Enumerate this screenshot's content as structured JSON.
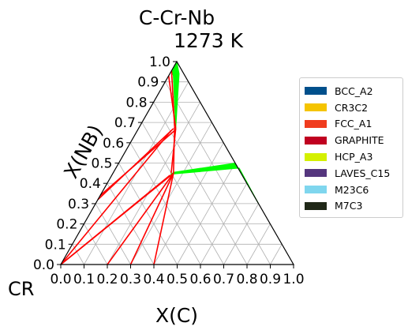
{
  "chart_data": {
    "type": "ternary",
    "title": "C-Cr-Nb",
    "subtitle": "1273  K",
    "xlabel": "X(C)",
    "ylabel": "X(NB)",
    "corner_label": "CR",
    "xlim": [
      0,
      1
    ],
    "ylim": [
      0,
      1
    ],
    "x_ticks": [
      "0.0",
      "0.1",
      "0.2",
      "0.3",
      "0.4",
      "0.5",
      "0.6",
      "0.7",
      "0.8",
      "0.9",
      "1.0"
    ],
    "y_ticks": [
      "0.0",
      "0.1",
      "0.2",
      "0.3",
      "0.4",
      "0.5",
      "0.6",
      "0.7",
      "0.8",
      "0.9",
      "1.0"
    ],
    "grid": true,
    "legend_position": "right",
    "legend": [
      {
        "name": "BCC_A2",
        "color": "#00508c"
      },
      {
        "name": "CR3C2",
        "color": "#f5c400"
      },
      {
        "name": "FCC_A1",
        "color": "#f03c1e"
      },
      {
        "name": "GRAPHITE",
        "color": "#c00020"
      },
      {
        "name": "HCP_A3",
        "color": "#d4f000"
      },
      {
        "name": "LAVES_C15",
        "color": "#55367e"
      },
      {
        "name": "M23C6",
        "color": "#7fd6ee"
      },
      {
        "name": "M7C3",
        "color": "#202818"
      }
    ],
    "tie_line_color": "#ff0000",
    "region_fill_color": "#00ff00",
    "regions": [
      {
        "points": [
          [
            0.0,
            0.955
          ],
          [
            0.0,
            1.0
          ],
          [
            0.04,
            0.94
          ],
          [
            0.16,
            0.67
          ],
          [
            0.02,
            0.93
          ]
        ]
      },
      {
        "points": [
          [
            0.25,
            0.445
          ],
          [
            0.26,
            0.455
          ],
          [
            0.5,
            0.5
          ],
          [
            0.7,
            0.3
          ],
          [
            0.53,
            0.475
          ]
        ]
      }
    ],
    "tie_lines": [
      [
        [
          0.0,
          0.93
        ],
        [
          0.16,
          0.67
        ]
      ],
      [
        [
          0.0,
          0.955
        ],
        [
          0.15,
          0.68
        ]
      ],
      [
        [
          0.0,
          0.32
        ],
        [
          0.15,
          0.67
        ]
      ],
      [
        [
          0.0,
          0.34
        ],
        [
          0.16,
          0.66
        ]
      ],
      [
        [
          0.0,
          0.0
        ],
        [
          0.145,
          0.66
        ]
      ],
      [
        [
          0.0,
          0.0
        ],
        [
          0.26,
          0.45
        ]
      ],
      [
        [
          0.0,
          0.0
        ],
        [
          0.25,
          0.44
        ]
      ],
      [
        [
          0.15,
          0.68
        ],
        [
          0.26,
          0.45
        ]
      ],
      [
        [
          0.16,
          0.67
        ],
        [
          0.25,
          0.45
        ]
      ],
      [
        [
          0.2,
          0.0
        ],
        [
          0.26,
          0.45
        ]
      ],
      [
        [
          0.3,
          0.0
        ],
        [
          0.26,
          0.45
        ]
      ],
      [
        [
          0.4,
          0.0
        ],
        [
          0.26,
          0.45
        ]
      ]
    ]
  }
}
